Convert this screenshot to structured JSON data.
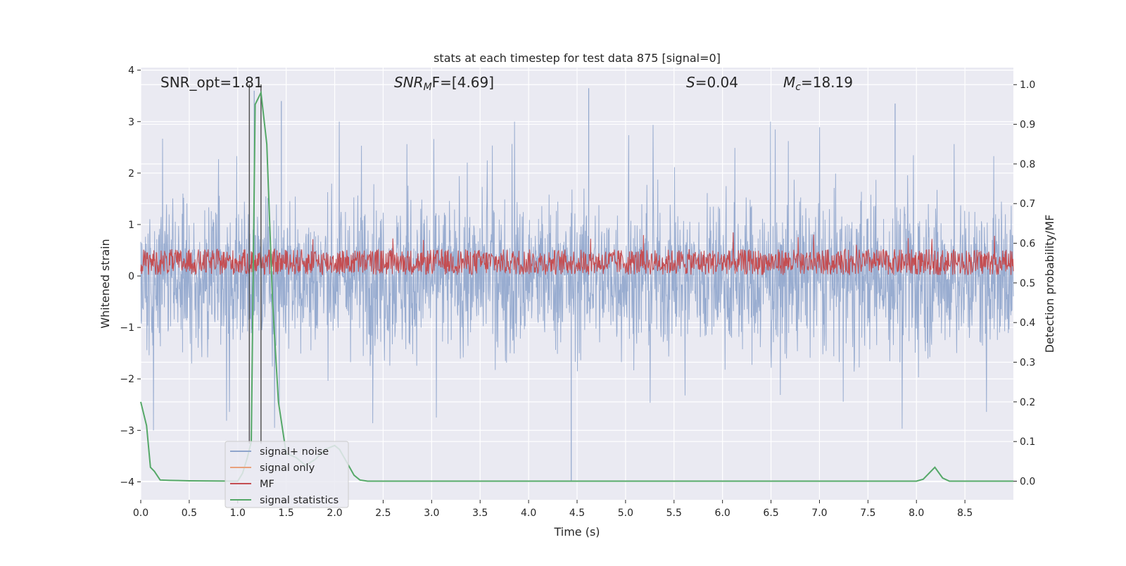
{
  "chart_data": {
    "type": "line",
    "title": "stats at each timestep for test data 875 [signal=0]",
    "xlabel": "Time (s)",
    "ylabel_left": "Whitened strain",
    "ylabel_right": "Detection probability/MF",
    "xlim": [
      0.0,
      9.0
    ],
    "ylim_left": [
      -4.35,
      4.05
    ],
    "ylim_right": [
      -0.047,
      1.043
    ],
    "xticks": [
      "0.0",
      "0.5",
      "1.0",
      "1.5",
      "2.0",
      "2.5",
      "3.0",
      "3.5",
      "4.0",
      "4.5",
      "5.0",
      "5.5",
      "6.0",
      "6.5",
      "7.0",
      "7.5",
      "8.0",
      "8.5"
    ],
    "yticks_left": [
      "−4",
      "−3",
      "−2",
      "−1",
      "0",
      "1",
      "2",
      "3",
      "4"
    ],
    "yticks_right": [
      "0.0",
      "0.1",
      "0.2",
      "0.3",
      "0.4",
      "0.5",
      "0.6",
      "0.7",
      "0.8",
      "0.9",
      "1.0"
    ],
    "grid": true,
    "legend_position": "lower-left",
    "annotations": {
      "snr_opt": "SNR_opt=1.81",
      "snr_mf_base": "SNR",
      "snr_mf_sub": "M",
      "snr_mf_rest": "F=[4.69]",
      "s_var": "S",
      "s_rest": "=0.04",
      "mc_base": "M",
      "mc_sub": "c",
      "mc_rest": "=18.19"
    },
    "vertical_lines_x": [
      1.12,
      1.24
    ],
    "series": [
      {
        "name": "signal+ noise",
        "axis": "left",
        "color": "#8fa5cc",
        "description_stats": {
          "min_typical": -2.0,
          "max_typical": 2.2,
          "peaks": [
            [
              4.44,
              -4.0
            ],
            [
              4.62,
              3.65
            ],
            [
              1.17,
              3.6
            ],
            [
              1.45,
              3.4
            ],
            [
              7.78,
              3.35
            ]
          ]
        }
      },
      {
        "name": "signal only",
        "axis": "left",
        "color": "#e8a17c",
        "x": [],
        "y": []
      },
      {
        "name": "MF",
        "axis": "left",
        "color": "#c44e52",
        "description_stats": {
          "baseline_low": 0.0,
          "baseline_high": 0.55,
          "max": 0.87
        }
      },
      {
        "name": "signal statistics",
        "axis": "right",
        "color": "#55a868",
        "x": [
          0.0,
          0.03,
          0.06,
          0.1,
          0.14,
          0.2,
          0.3,
          0.5,
          1.0,
          1.05,
          1.1,
          1.14,
          1.18,
          1.24,
          1.3,
          1.36,
          1.42,
          1.5,
          1.6,
          1.7,
          1.8,
          1.9,
          2.0,
          2.05,
          2.12,
          2.2,
          2.26,
          2.34,
          3.0,
          4.0,
          5.0,
          6.0,
          7.0,
          7.9,
          8.0,
          8.07,
          8.19,
          8.27,
          8.34,
          8.5,
          9.0
        ],
        "y": [
          0.2,
          0.17,
          0.14,
          0.035,
          0.025,
          0.003,
          0.002,
          0.001,
          0.0,
          0.02,
          0.06,
          0.1,
          0.95,
          0.98,
          0.85,
          0.45,
          0.2,
          0.07,
          0.06,
          0.04,
          0.055,
          0.08,
          0.09,
          0.08,
          0.05,
          0.015,
          0.003,
          0.0,
          0.0,
          0.0,
          0.0,
          0.0,
          0.0,
          0.0,
          0.0,
          0.005,
          0.035,
          0.008,
          0.0,
          0.0,
          0.0
        ]
      }
    ]
  }
}
